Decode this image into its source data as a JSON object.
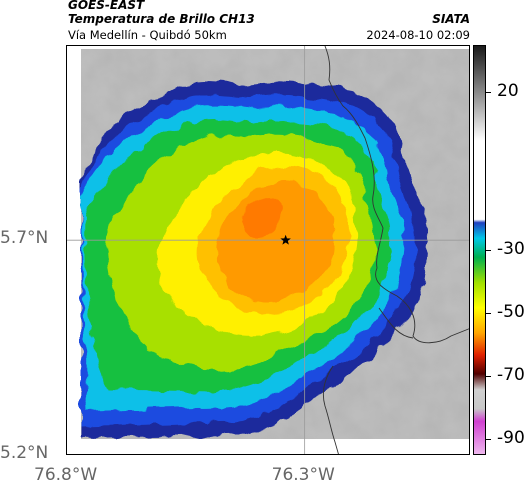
{
  "header": {
    "satellite": "GOES-EAST",
    "product": "Temperatura de Brillo CH13",
    "route": "Vía Medellín - Quibdó 50km",
    "agency": "SIATA",
    "datetime": "2024-08-10 02:09"
  },
  "map": {
    "lat_ticks": [
      "5.7°N",
      "5.2°N"
    ],
    "lon_ticks": [
      "76.8°W",
      "76.3°W"
    ],
    "lat_range": [
      5.2,
      6.15
    ],
    "lon_range": [
      -76.8,
      -75.95
    ],
    "marker": {
      "type": "star",
      "lon": -76.34,
      "lat": 5.7
    },
    "reference_lines": {
      "lon": -76.3,
      "lat": 5.7
    }
  },
  "colorbar": {
    "ticks": [
      "20",
      "-30",
      "-50",
      "-70",
      "-90"
    ],
    "tick_values": [
      20,
      -30,
      -50,
      -70,
      -90
    ],
    "range": [
      -95,
      35
    ],
    "stops": [
      {
        "v": 35,
        "c": "#1a1a1a"
      },
      {
        "v": 5,
        "c": "#ffffff"
      },
      {
        "v": -20,
        "c": "#ffffff"
      },
      {
        "v": -21,
        "c": "#2040c0"
      },
      {
        "v": -26,
        "c": "#00c8e8"
      },
      {
        "v": -32,
        "c": "#00b050"
      },
      {
        "v": -40,
        "c": "#a0e000"
      },
      {
        "v": -48,
        "c": "#ffff00"
      },
      {
        "v": -56,
        "c": "#ffa500"
      },
      {
        "v": -63,
        "c": "#e02000"
      },
      {
        "v": -69,
        "c": "#500000"
      },
      {
        "v": -74,
        "c": "#d0d0d0"
      },
      {
        "v": -80,
        "c": "#c8c8c8"
      },
      {
        "v": -84,
        "c": "#d040d0"
      },
      {
        "v": -95,
        "c": "#f0c0f0"
      }
    ]
  }
}
